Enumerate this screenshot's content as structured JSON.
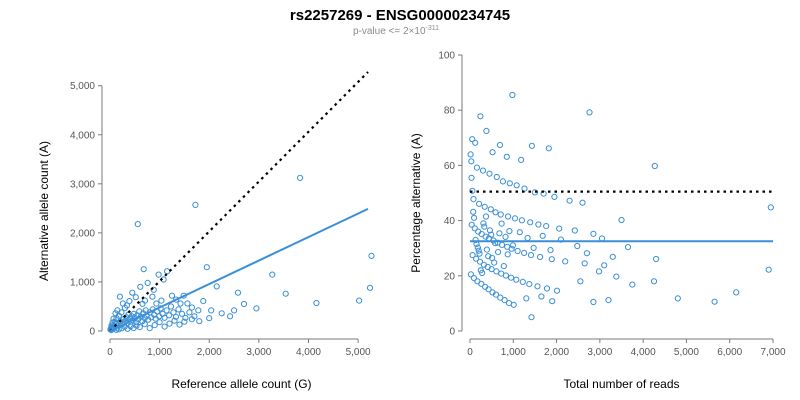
{
  "title": "rs2257269 - ENSG00000234745",
  "subtitle": {
    "base": "p-value <= 2×10",
    "exponent": "-311"
  },
  "colors": {
    "points": "#3a8fd8",
    "fit_line": "#3a8fd8",
    "reference_line": "#000000",
    "axis": "#7a7a7a"
  },
  "chart_data": [
    {
      "type": "scatter",
      "xlabel": "Reference allele count (G)",
      "ylabel": "Alternative allele count (A)",
      "xlim": [
        0,
        5300
      ],
      "ylim": [
        0,
        5300
      ],
      "xticks": [
        {
          "value": 0,
          "label": "0"
        },
        {
          "value": 1000,
          "label": "1,000"
        },
        {
          "value": 2000,
          "label": "2,000"
        },
        {
          "value": 3000,
          "label": "3,000"
        },
        {
          "value": 4000,
          "label": "4,000"
        },
        {
          "value": 5000,
          "label": "5,000"
        }
      ],
      "yticks": [
        {
          "value": 0,
          "label": "0"
        },
        {
          "value": 1000,
          "label": "1,000"
        },
        {
          "value": 2000,
          "label": "2,000"
        },
        {
          "value": 3000,
          "label": "3,000"
        },
        {
          "value": 4000,
          "label": "4,000"
        },
        {
          "value": 5000,
          "label": "5,000"
        }
      ],
      "grid": false,
      "lines": [
        {
          "kind": "reference",
          "style": "dotted",
          "color": "#000000",
          "x": [
            0,
            5200
          ],
          "y": [
            0,
            5280
          ]
        },
        {
          "kind": "fit",
          "style": "solid",
          "color": "#3a8fd8",
          "x": [
            0,
            5200
          ],
          "y": [
            0,
            2490
          ]
        }
      ],
      "points": [
        [
          3830,
          3120
        ],
        [
          1720,
          2570
        ],
        [
          560,
          2180
        ],
        [
          5270,
          1530
        ],
        [
          3270,
          1150
        ],
        [
          1950,
          1300
        ],
        [
          2150,
          910
        ],
        [
          2580,
          780
        ],
        [
          3540,
          760
        ],
        [
          4160,
          570
        ],
        [
          5020,
          620
        ],
        [
          5240,
          880
        ],
        [
          2950,
          460
        ],
        [
          2420,
          300
        ],
        [
          2040,
          420
        ],
        [
          1880,
          610
        ],
        [
          1650,
          480
        ],
        [
          1420,
          560
        ],
        [
          1250,
          720
        ],
        [
          1150,
          1220
        ],
        [
          1080,
          1050
        ],
        [
          980,
          1150
        ],
        [
          880,
          840
        ],
        [
          760,
          980
        ],
        [
          680,
          1260
        ],
        [
          610,
          900
        ],
        [
          520,
          690
        ],
        [
          450,
          780
        ],
        [
          390,
          610
        ],
        [
          340,
          520
        ],
        [
          300,
          470
        ],
        [
          260,
          560
        ],
        [
          230,
          380
        ],
        [
          200,
          700
        ],
        [
          180,
          310
        ],
        [
          150,
          420
        ],
        [
          130,
          260
        ],
        [
          110,
          360
        ],
        [
          90,
          190
        ],
        [
          70,
          250
        ],
        [
          60,
          120
        ],
        [
          50,
          170
        ],
        [
          40,
          80
        ],
        [
          30,
          110
        ],
        [
          20,
          50
        ],
        [
          10,
          30
        ],
        [
          25,
          20
        ],
        [
          45,
          40
        ],
        [
          80,
          60
        ],
        [
          100,
          90
        ],
        [
          120,
          140
        ],
        [
          140,
          70
        ],
        [
          160,
          110
        ],
        [
          190,
          150
        ],
        [
          210,
          200
        ],
        [
          240,
          130
        ],
        [
          270,
          240
        ],
        [
          290,
          170
        ],
        [
          310,
          210
        ],
        [
          330,
          280
        ],
        [
          350,
          160
        ],
        [
          370,
          330
        ],
        [
          400,
          250
        ],
        [
          420,
          190
        ],
        [
          440,
          300
        ],
        [
          460,
          220
        ],
        [
          480,
          350
        ],
        [
          500,
          270
        ],
        [
          530,
          180
        ],
        [
          550,
          320
        ],
        [
          570,
          240
        ],
        [
          590,
          400
        ],
        [
          620,
          290
        ],
        [
          650,
          200
        ],
        [
          670,
          360
        ],
        [
          700,
          260
        ],
        [
          720,
          420
        ],
        [
          740,
          310
        ],
        [
          770,
          230
        ],
        [
          800,
          380
        ],
        [
          830,
          280
        ],
        [
          860,
          440
        ],
        [
          890,
          330
        ],
        [
          920,
          250
        ],
        [
          950,
          400
        ],
        [
          990,
          300
        ],
        [
          1020,
          460
        ],
        [
          1060,
          350
        ],
        [
          1100,
          270
        ],
        [
          1140,
          420
        ],
        [
          1190,
          320
        ],
        [
          1230,
          500
        ],
        [
          1280,
          380
        ],
        [
          1330,
          290
        ],
        [
          1380,
          440
        ],
        [
          1450,
          350
        ],
        [
          1520,
          270
        ],
        [
          1600,
          380
        ],
        [
          1700,
          300
        ],
        [
          1780,
          420
        ],
        [
          600,
          80
        ],
        [
          700,
          140
        ],
        [
          800,
          60
        ],
        [
          900,
          120
        ],
        [
          1000,
          180
        ],
        [
          1100,
          90
        ],
        [
          1200,
          150
        ],
        [
          1300,
          210
        ],
        [
          1400,
          130
        ],
        [
          1500,
          190
        ],
        [
          1650,
          240
        ],
        [
          1800,
          200
        ],
        [
          2000,
          260
        ],
        [
          2250,
          360
        ],
        [
          2500,
          420
        ],
        [
          2700,
          550
        ],
        [
          355,
          45
        ],
        [
          415,
          95
        ],
        [
          475,
          60
        ],
        [
          535,
          110
        ],
        [
          295,
          85
        ],
        [
          235,
          55
        ],
        [
          175,
          35
        ],
        [
          125,
          25
        ],
        [
          655,
          555
        ],
        [
          705,
          620
        ],
        [
          855,
          700
        ],
        [
          935,
          560
        ],
        [
          1035,
          620
        ],
        [
          1335,
          640
        ],
        [
          1485,
          720
        ],
        [
          1560,
          560
        ]
      ]
    },
    {
      "type": "scatter",
      "xlabel": "Total number of reads",
      "ylabel": "Percentage alternative (A)",
      "xlim": [
        0,
        7000
      ],
      "ylim": [
        0,
        100
      ],
      "xticks": [
        {
          "value": 0,
          "label": "0"
        },
        {
          "value": 1000,
          "label": "1,000"
        },
        {
          "value": 2000,
          "label": "2,000"
        },
        {
          "value": 3000,
          "label": "3,000"
        },
        {
          "value": 4000,
          "label": "4,000"
        },
        {
          "value": 5000,
          "label": "5,000"
        },
        {
          "value": 6000,
          "label": "6,000"
        },
        {
          "value": 7000,
          "label": "7,000"
        }
      ],
      "yticks": [
        {
          "value": 0,
          "label": "0"
        },
        {
          "value": 20,
          "label": "20"
        },
        {
          "value": 40,
          "label": "40"
        },
        {
          "value": 60,
          "label": "60"
        },
        {
          "value": 80,
          "label": "80"
        },
        {
          "value": 100,
          "label": "100"
        }
      ],
      "grid": false,
      "lines": [
        {
          "kind": "reference",
          "style": "dotted",
          "color": "#000000",
          "x": [
            0,
            7000
          ],
          "y": [
            50.5,
            50.5
          ]
        },
        {
          "kind": "fit",
          "style": "solid",
          "color": "#3a8fd8",
          "x": [
            0,
            7000
          ],
          "y": [
            32.5,
            32.5
          ]
        }
      ],
      "points": [
        [
          980,
          85.5
        ],
        [
          2760,
          79.2
        ],
        [
          240,
          77.8
        ],
        [
          380,
          72.5
        ],
        [
          50,
          69.5
        ],
        [
          120,
          68.2
        ],
        [
          690,
          67.4
        ],
        [
          1430,
          67.1
        ],
        [
          1820,
          66.2
        ],
        [
          520,
          64.8
        ],
        [
          850,
          63.1
        ],
        [
          1180,
          62.0
        ],
        [
          4270,
          59.8
        ],
        [
          30,
          61.5
        ],
        [
          160,
          59.2
        ],
        [
          300,
          58.1
        ],
        [
          450,
          57.0
        ],
        [
          620,
          55.8
        ],
        [
          760,
          54.2
        ],
        [
          920,
          53.5
        ],
        [
          1080,
          52.8
        ],
        [
          1260,
          51.6
        ],
        [
          1500,
          50.2
        ],
        [
          1700,
          49.8
        ],
        [
          1950,
          48.6
        ],
        [
          2300,
          47.2
        ],
        [
          2600,
          46.5
        ],
        [
          6950,
          44.8
        ],
        [
          80,
          47.8
        ],
        [
          210,
          46.1
        ],
        [
          340,
          45.0
        ],
        [
          480,
          44.1
        ],
        [
          590,
          43.0
        ],
        [
          710,
          42.2
        ],
        [
          880,
          41.5
        ],
        [
          1040,
          40.8
        ],
        [
          1200,
          40.1
        ],
        [
          1390,
          39.4
        ],
        [
          1580,
          38.6
        ],
        [
          1760,
          38.0
        ],
        [
          2060,
          37.1
        ],
        [
          2420,
          36.4
        ],
        [
          2850,
          35.2
        ],
        [
          3500,
          40.2
        ],
        [
          40,
          38.5
        ],
        [
          110,
          37.2
        ],
        [
          190,
          36.0
        ],
        [
          270,
          35.1
        ],
        [
          360,
          34.2
        ],
        [
          440,
          33.5
        ],
        [
          540,
          32.8
        ],
        [
          640,
          32.0
        ],
        [
          740,
          31.2
        ],
        [
          860,
          30.5
        ],
        [
          960,
          29.8
        ],
        [
          1100,
          29.0
        ],
        [
          1250,
          28.3
        ],
        [
          1410,
          27.5
        ],
        [
          1620,
          26.8
        ],
        [
          1890,
          26.0
        ],
        [
          2200,
          25.2
        ],
        [
          2650,
          24.5
        ],
        [
          3100,
          23.8
        ],
        [
          3650,
          30.4
        ],
        [
          4300,
          26.1
        ],
        [
          60,
          27.5
        ],
        [
          140,
          26.2
        ],
        [
          230,
          25.1
        ],
        [
          320,
          24.0
        ],
        [
          410,
          23.2
        ],
        [
          500,
          22.4
        ],
        [
          610,
          21.6
        ],
        [
          720,
          20.8
        ],
        [
          830,
          20.1
        ],
        [
          950,
          19.3
        ],
        [
          1070,
          18.6
        ],
        [
          1220,
          17.8
        ],
        [
          1370,
          17.0
        ],
        [
          1560,
          16.2
        ],
        [
          1780,
          15.4
        ],
        [
          2010,
          14.6
        ],
        [
          2550,
          18.0
        ],
        [
          2980,
          21.6
        ],
        [
          3380,
          19.7
        ],
        [
          3750,
          16.8
        ],
        [
          4250,
          18.0
        ],
        [
          6900,
          22.2
        ],
        [
          20,
          20.5
        ],
        [
          90,
          19.2
        ],
        [
          170,
          18.0
        ],
        [
          260,
          17.1
        ],
        [
          350,
          16.0
        ],
        [
          430,
          15.1
        ],
        [
          520,
          14.0
        ],
        [
          600,
          13.2
        ],
        [
          700,
          12.1
        ],
        [
          800,
          11.2
        ],
        [
          900,
          10.1
        ],
        [
          1010,
          9.5
        ],
        [
          1300,
          11.8
        ],
        [
          1420,
          5.0
        ],
        [
          1650,
          12.5
        ],
        [
          1900,
          10.8
        ],
        [
          2850,
          10.5
        ],
        [
          4800,
          11.8
        ],
        [
          5650,
          10.6
        ],
        [
          6150,
          14.0
        ],
        [
          3200,
          11.2
        ],
        [
          15,
          64.0
        ],
        [
          35,
          55.5
        ],
        [
          55,
          50.8
        ],
        [
          75,
          43.2
        ],
        [
          95,
          41.0
        ],
        [
          130,
          33.0
        ],
        [
          150,
          31.5
        ],
        [
          180,
          30.2
        ],
        [
          200,
          29.1
        ],
        [
          220,
          28.0
        ],
        [
          250,
          22.0
        ],
        [
          280,
          21.0
        ],
        [
          310,
          39.0
        ],
        [
          330,
          37.8
        ],
        [
          370,
          41.5
        ],
        [
          390,
          29.5
        ],
        [
          420,
          27.1
        ],
        [
          460,
          36.5
        ],
        [
          490,
          34.9
        ],
        [
          510,
          26.5
        ],
        [
          560,
          24.8
        ],
        [
          580,
          31.8
        ],
        [
          650,
          28.6
        ],
        [
          680,
          35.4
        ],
        [
          730,
          38.9
        ],
        [
          780,
          23.5
        ],
        [
          820,
          34.1
        ],
        [
          870,
          27.8
        ],
        [
          910,
          36.2
        ],
        [
          990,
          31.0
        ],
        [
          1150,
          35.8
        ],
        [
          1330,
          33.7
        ],
        [
          1470,
          30.1
        ],
        [
          1680,
          34.5
        ],
        [
          1860,
          29.3
        ],
        [
          2100,
          33.1
        ],
        [
          2480,
          30.8
        ],
        [
          2700,
          28.2
        ],
        [
          3050,
          33.5
        ],
        [
          3300,
          26.9
        ]
      ]
    }
  ]
}
